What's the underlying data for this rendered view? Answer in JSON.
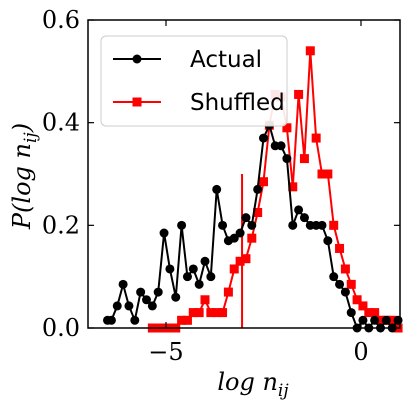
{
  "chart_data": {
    "type": "line",
    "xlabel": "log n",
    "xlabel_sub": "ij",
    "ylabel": "P(log n",
    "ylabel_sub": "ij",
    "ylabel_close": ")",
    "xlim": [
      -7.0,
      1.0
    ],
    "ylim": [
      0.0,
      0.6
    ],
    "xticks": [
      -5,
      0
    ],
    "xtick_labels": [
      "−5",
      "0"
    ],
    "yticks": [
      0.0,
      0.2,
      0.4,
      0.6
    ],
    "ytick_labels": [
      "0.0",
      "0.2",
      "0.4",
      "0.6"
    ],
    "grid": false,
    "legend_position": "top-left",
    "vertical_line": {
      "x": -3.05,
      "y_top": 0.3,
      "color": "#ff0000"
    },
    "series": [
      {
        "name": "Actual",
        "color": "#000000",
        "marker": "circle",
        "x": [
          -6.5,
          -6.4,
          -6.25,
          -6.1,
          -5.95,
          -5.8,
          -5.65,
          -5.5,
          -5.35,
          -5.2,
          -5.05,
          -4.9,
          -4.75,
          -4.6,
          -4.45,
          -4.3,
          -4.15,
          -4.0,
          -3.85,
          -3.7,
          -3.55,
          -3.4,
          -3.25,
          -3.1,
          -2.95,
          -2.8,
          -2.65,
          -2.5,
          -2.35,
          -2.2,
          -2.05,
          -1.9,
          -1.75,
          -1.6,
          -1.45,
          -1.3,
          -1.15,
          -1.0,
          -0.85,
          -0.7,
          -0.55,
          -0.4,
          -0.25,
          -0.1,
          0.05,
          0.2,
          0.35,
          0.5,
          0.65,
          0.8,
          0.95
        ],
        "y": [
          0.015,
          0.015,
          0.043,
          0.085,
          0.043,
          0.015,
          0.07,
          0.055,
          0.043,
          0.07,
          0.185,
          0.115,
          0.06,
          0.2,
          0.1,
          0.115,
          0.085,
          0.13,
          0.1,
          0.27,
          0.2,
          0.17,
          0.175,
          0.185,
          0.215,
          0.2,
          0.27,
          0.37,
          0.395,
          0.355,
          0.355,
          0.33,
          0.2,
          0.23,
          0.215,
          0.2,
          0.2,
          0.2,
          0.17,
          0.1,
          0.085,
          0.07,
          0.03,
          0.0,
          0.015,
          0.0,
          0.015,
          0.0,
          0.015,
          0.0,
          0.015
        ]
      },
      {
        "name": "Shuffled",
        "color": "#ff0000",
        "marker": "square",
        "x": [
          -5.35,
          -5.2,
          -5.05,
          -4.9,
          -4.75,
          -4.6,
          -4.45,
          -4.3,
          -4.15,
          -4.0,
          -3.85,
          -3.7,
          -3.55,
          -3.4,
          -3.25,
          -3.1,
          -2.95,
          -2.8,
          -2.65,
          -2.5,
          -2.35,
          -2.2,
          -2.05,
          -1.9,
          -1.75,
          -1.6,
          -1.45,
          -1.3,
          -1.15,
          -1.0,
          -0.85,
          -0.7,
          -0.55,
          -0.4,
          -0.25,
          -0.1,
          0.05,
          0.2,
          0.35,
          0.5,
          0.65,
          0.8,
          0.95
        ],
        "y": [
          0.0,
          0.0,
          0.0,
          0.0,
          0.0,
          0.015,
          0.015,
          0.03,
          0.03,
          0.055,
          0.03,
          0.03,
          0.03,
          0.07,
          0.115,
          0.13,
          0.135,
          0.175,
          0.225,
          0.285,
          0.395,
          0.455,
          0.45,
          0.39,
          0.275,
          0.455,
          0.33,
          0.54,
          0.37,
          0.3,
          0.3,
          0.2,
          0.155,
          0.115,
          0.085,
          0.055,
          0.043,
          0.03,
          0.03,
          0.015,
          0.015,
          0.015,
          0.0
        ]
      }
    ]
  }
}
